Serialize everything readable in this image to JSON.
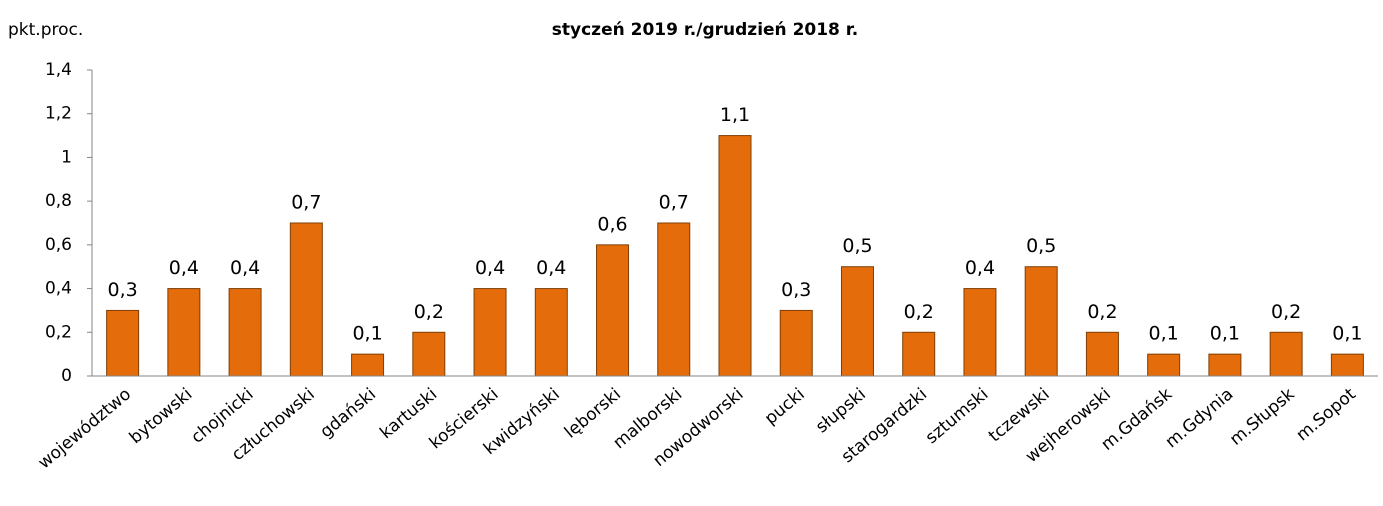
{
  "chart_data": {
    "type": "bar",
    "title": "styczeń 2019 r./grudzień 2018 r.",
    "y_label": "pkt.proc.",
    "categories": [
      "województwo",
      "bytowski",
      "chojnicki",
      "człuchowski",
      "gdański",
      "kartuski",
      "kościerski",
      "kwidzyński",
      "lęborski",
      "malborski",
      "nowodworski",
      "pucki",
      "słupski",
      "starogardzki",
      "sztumski",
      "tczewski",
      "wejherowski",
      "m.Gdańsk",
      "m.Gdynia",
      "m.Słupsk",
      "m.Sopot"
    ],
    "values": [
      0.3,
      0.4,
      0.4,
      0.7,
      0.1,
      0.2,
      0.4,
      0.4,
      0.6,
      0.7,
      1.1,
      0.3,
      0.5,
      0.2,
      0.4,
      0.5,
      0.2,
      0.1,
      0.1,
      0.2,
      0.1
    ],
    "value_labels": [
      "0,3",
      "0,4",
      "0,4",
      "0,7",
      "0,1",
      "0,2",
      "0,4",
      "0,4",
      "0,6",
      "0,7",
      "1,1",
      "0,3",
      "0,5",
      "0,2",
      "0,4",
      "0,5",
      "0,2",
      "0,1",
      "0,1",
      "0,2",
      "0,1"
    ],
    "color": "#e46c0a",
    "ylim": [
      0,
      1.4
    ],
    "yticks": [
      0,
      {
        "value": 0.2,
        "label": "0,2"
      },
      {
        "value": 0.4,
        "label": "0,4"
      },
      {
        "value": 0.6,
        "label": "0,6"
      },
      {
        "value": 0.8,
        "label": "0,8"
      },
      1,
      {
        "value": 1.2,
        "label": "1,2"
      },
      {
        "value": 1.4,
        "label": "1,4"
      }
    ]
  }
}
